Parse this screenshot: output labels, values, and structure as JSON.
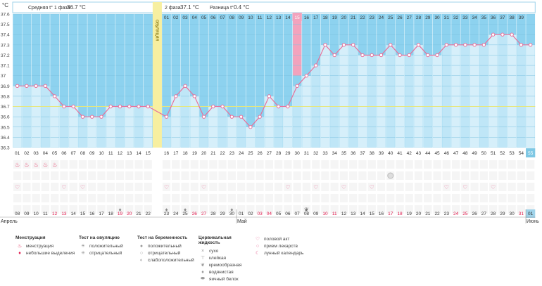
{
  "header": {
    "unit_label": "°C",
    "phase1_label": "Средняя t° 1 фаза",
    "phase1_value": "36.7 °C",
    "phase2_label": "2 фаза",
    "phase2_value": "37.1 °C",
    "diff_label": "Разница t°",
    "diff_value": "0.4 °C"
  },
  "chart_data": {
    "type": "line",
    "title": "",
    "ylim": [
      36.3,
      37.6
    ],
    "y_ticks": [
      "37.6",
      "37.5",
      "37.4",
      "37.3",
      "37.2",
      "37.1",
      "37",
      "36.9",
      "36.8",
      "36.7",
      "36.6",
      "36.5",
      "36.4",
      "36.3"
    ],
    "coverline": 36.7,
    "ovulation_label": "овуляция",
    "ovulation_after_day": 15,
    "cycle_days_top": [
      "01",
      "02",
      "03",
      "04",
      "05",
      "06",
      "07",
      "08",
      "09",
      "10",
      "11",
      "12",
      "13",
      "14",
      "15",
      "16",
      "17",
      "18",
      "19",
      "20",
      "21",
      "22",
      "23",
      "24",
      "25",
      "26",
      "27",
      "28",
      "29",
      "30",
      "31",
      "32",
      "33",
      "34",
      "35",
      "36",
      "37",
      "38",
      "39"
    ],
    "highlight_top_day": "15",
    "days_bottom": [
      "01",
      "02",
      "03",
      "04",
      "05",
      "06",
      "07",
      "08",
      "09",
      "10",
      "11",
      "12",
      "13",
      "14",
      "15",
      "16",
      "17",
      "18",
      "19",
      "20",
      "21",
      "22",
      "23",
      "24",
      "25",
      "26",
      "27",
      "28",
      "29",
      "30",
      "31",
      "32",
      "33",
      "34",
      "35",
      "36",
      "37",
      "38",
      "39",
      "40",
      "41",
      "42",
      "43",
      "44",
      "45",
      "46",
      "47",
      "48",
      "49",
      "50",
      "51",
      "52",
      "53",
      "54",
      "55"
    ],
    "highlight_bottom_day": "55",
    "temperatures": [
      36.9,
      36.9,
      36.9,
      36.9,
      36.8,
      36.7,
      36.7,
      36.6,
      36.6,
      36.6,
      36.7,
      36.7,
      36.7,
      36.7,
      36.7,
      36.6,
      36.8,
      36.9,
      36.8,
      36.6,
      36.7,
      36.7,
      36.6,
      36.6,
      36.5,
      36.6,
      36.8,
      36.7,
      36.7,
      36.9,
      37.0,
      37.1,
      37.3,
      37.2,
      37.3,
      37.3,
      37.2,
      37.2,
      37.2,
      37.3,
      37.2,
      37.2,
      37.3,
      37.2,
      37.2,
      37.3,
      37.3,
      37.3,
      37.3,
      37.3,
      37.4,
      37.4,
      37.4,
      37.3,
      37.3
    ],
    "dates": [
      "08",
      "09",
      "10",
      "11",
      "12",
      "13",
      "14",
      "15",
      "16",
      "17",
      "18",
      "19",
      "20",
      "21",
      "22",
      "23",
      "24",
      "25",
      "26",
      "27",
      "28",
      "29",
      "30",
      "01",
      "02",
      "03",
      "04",
      "05",
      "06",
      "07",
      "08",
      "09",
      "10",
      "11",
      "12",
      "13",
      "14",
      "15",
      "16",
      "17",
      "18",
      "19",
      "20",
      "21",
      "22",
      "23",
      "24",
      "25",
      "26",
      "27",
      "28",
      "29",
      "30",
      "31",
      "01"
    ],
    "red_dates_idx": [
      4,
      5,
      11,
      12,
      18,
      19,
      25,
      26,
      32,
      33,
      39,
      40,
      46,
      47,
      53
    ],
    "months": [
      {
        "label": "Апрель",
        "at": 0
      },
      {
        "label": "Май",
        "at": 23
      },
      {
        "label": "Июнь",
        "at": 54
      }
    ],
    "menstruation_days": [
      0,
      1,
      2,
      3,
      4
    ],
    "intercourse_days": [
      0,
      5,
      7,
      15,
      19,
      28,
      31,
      34,
      37,
      45,
      47,
      50
    ],
    "ovulation_test_day": 39,
    "pills_days": [
      11,
      15,
      17,
      22
    ],
    "lunar_days": [
      30
    ]
  },
  "legend": {
    "groups": [
      {
        "title": "Менструация",
        "items": [
          {
            "icon": "drops-icon",
            "sym": "♨",
            "label": "менструация"
          },
          {
            "icon": "drop-icon",
            "sym": "♦",
            "label": "небольшие выделения"
          }
        ]
      },
      {
        "title": "Тест на овуляцию",
        "items": [
          {
            "icon": "sun-icon",
            "sym": "☀",
            "label": "положительный"
          },
          {
            "icon": "sun-gray-icon",
            "sym": "✳",
            "label": "отрицательный"
          }
        ]
      },
      {
        "title": "Тест на беременность",
        "items": [
          {
            "icon": "disc-yellow-icon",
            "sym": "●",
            "label": "положительный"
          },
          {
            "icon": "disc-gray-icon",
            "sym": "○",
            "label": "отрицательный"
          },
          {
            "icon": "disc-half-icon",
            "sym": "◐",
            "label": "слабоположительный"
          }
        ]
      },
      {
        "title": "Цервикальная жидкость",
        "items": [
          {
            "icon": "cross-icon",
            "sym": "×",
            "label": "сухо"
          },
          {
            "icon": "sticky-icon",
            "sym": "⊤",
            "label": "клейкая"
          },
          {
            "icon": "cream-icon",
            "sym": "❦",
            "label": "кремообразная"
          },
          {
            "icon": "water-icon",
            "sym": "♦",
            "label": "водянистая"
          },
          {
            "icon": "egg-icon",
            "sym": "⬬",
            "label": "яичный белок"
          }
        ]
      },
      {
        "title": "",
        "items": [
          {
            "icon": "heart-icon",
            "sym": "♡",
            "label": "половой акт"
          },
          {
            "icon": "pill-icon",
            "sym": "○",
            "label": "прием лекарств"
          },
          {
            "icon": "moon-icon",
            "sym": "☾",
            "label": "лунный календарь"
          }
        ]
      }
    ]
  },
  "colors": {
    "bg_top": "#8dd2ef",
    "bg_col": "#bfe6f7",
    "bg_col_alt": "#d6effa",
    "line": "#e8709a",
    "coverline": "#e7e77a",
    "ovulation": "#f7efa0",
    "highlight": "#f2a3bd",
    "highlight_bottom": "#7fc8e4",
    "red_text": "#e0184c"
  }
}
